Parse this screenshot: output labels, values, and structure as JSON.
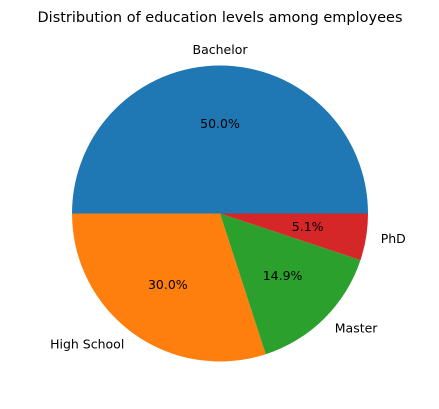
{
  "chart_data": {
    "type": "pie",
    "title": "Distribution of education levels among employees",
    "categories": [
      "Bachelor",
      "High School",
      "Master",
      "PhD"
    ],
    "values": [
      50.0,
      30.0,
      14.9,
      5.1
    ],
    "data_labels": [
      "50.0%",
      "30.0%",
      "14.9%",
      "5.1%"
    ],
    "colors": [
      "#1f77b4",
      "#ff7f0e",
      "#2ca02c",
      "#d62728"
    ],
    "start_angle_deg": 0,
    "direction": "counterclockwise",
    "legend": "none"
  }
}
